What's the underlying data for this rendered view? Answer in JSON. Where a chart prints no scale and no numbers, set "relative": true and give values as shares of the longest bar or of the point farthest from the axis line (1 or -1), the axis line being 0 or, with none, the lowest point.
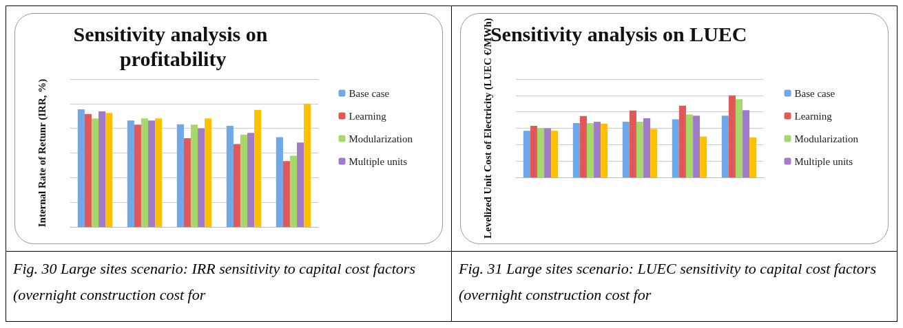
{
  "chart_data": [
    {
      "type": "bar",
      "title": "Sensitivity analysis on profitability",
      "ylabel": "Internal Rate of Retunr (IRR, %)",
      "categories": [
        null,
        null,
        null,
        null,
        null
      ],
      "relative": true,
      "grid": "y",
      "legend": "right",
      "series": [
        {
          "name": "Base case",
          "color": "#6fa8e8",
          "values": [
            0.955,
            0.864,
            0.833,
            0.82,
            0.729
          ]
        },
        {
          "name": "Learning",
          "color": "#e05858",
          "values": [
            0.917,
            0.83,
            0.72,
            0.673,
            0.534
          ]
        },
        {
          "name": "Modularization",
          "color": "#a6d96a",
          "values": [
            0.88,
            0.88,
            0.83,
            0.75,
            0.577
          ]
        },
        {
          "name": "Multiple units",
          "color": "#a07cc8",
          "values": [
            0.937,
            0.864,
            0.8,
            0.763,
            0.685
          ]
        },
        {
          "color": "#ffc000",
          "values": [
            0.925,
            0.88,
            0.88,
            0.95,
            1
          ]
        }
      ],
      "annotations": [
        "Fig. 30 Large sites scenario: IRR sensitivity to capital cost factors (overnight construction cost for"
      ]
    },
    {
      "type": "bar",
      "title": "Sensitivity analysis on LUEC",
      "ylabel": "Levelized Unit Cost of Electricity (LUEC €/MWh)",
      "categories": [
        null,
        null,
        null,
        null,
        null
      ],
      "relative": true,
      "grid": "y",
      "legend": "right",
      "series": [
        {
          "name": "Base case",
          "color": "#6fa8e8",
          "values": [
            0.57,
            0.664,
            0.68,
            0.709,
            0.754
          ]
        },
        {
          "name": "Learning",
          "color": "#e05858",
          "values": [
            0.63,
            0.75,
            0.816,
            0.875,
            1
          ]
        },
        {
          "name": "Modularization",
          "color": "#a6d96a",
          "values": [
            0.6,
            0.664,
            0.68,
            0.768,
            0.955
          ]
        },
        {
          "name": "Multiple units",
          "color": "#a07cc8",
          "values": [
            0.6,
            0.68,
            0.723,
            0.754,
            0.821
          ]
        },
        {
          "color": "#ffc000",
          "values": [
            0.57,
            0.657,
            0.593,
            0.5,
            0.49
          ]
        }
      ],
      "annotations": [
        "Fig. 31 Large sites scenario: LUEC sensitivity to capital cost factors (overnight construction cost for"
      ]
    }
  ]
}
